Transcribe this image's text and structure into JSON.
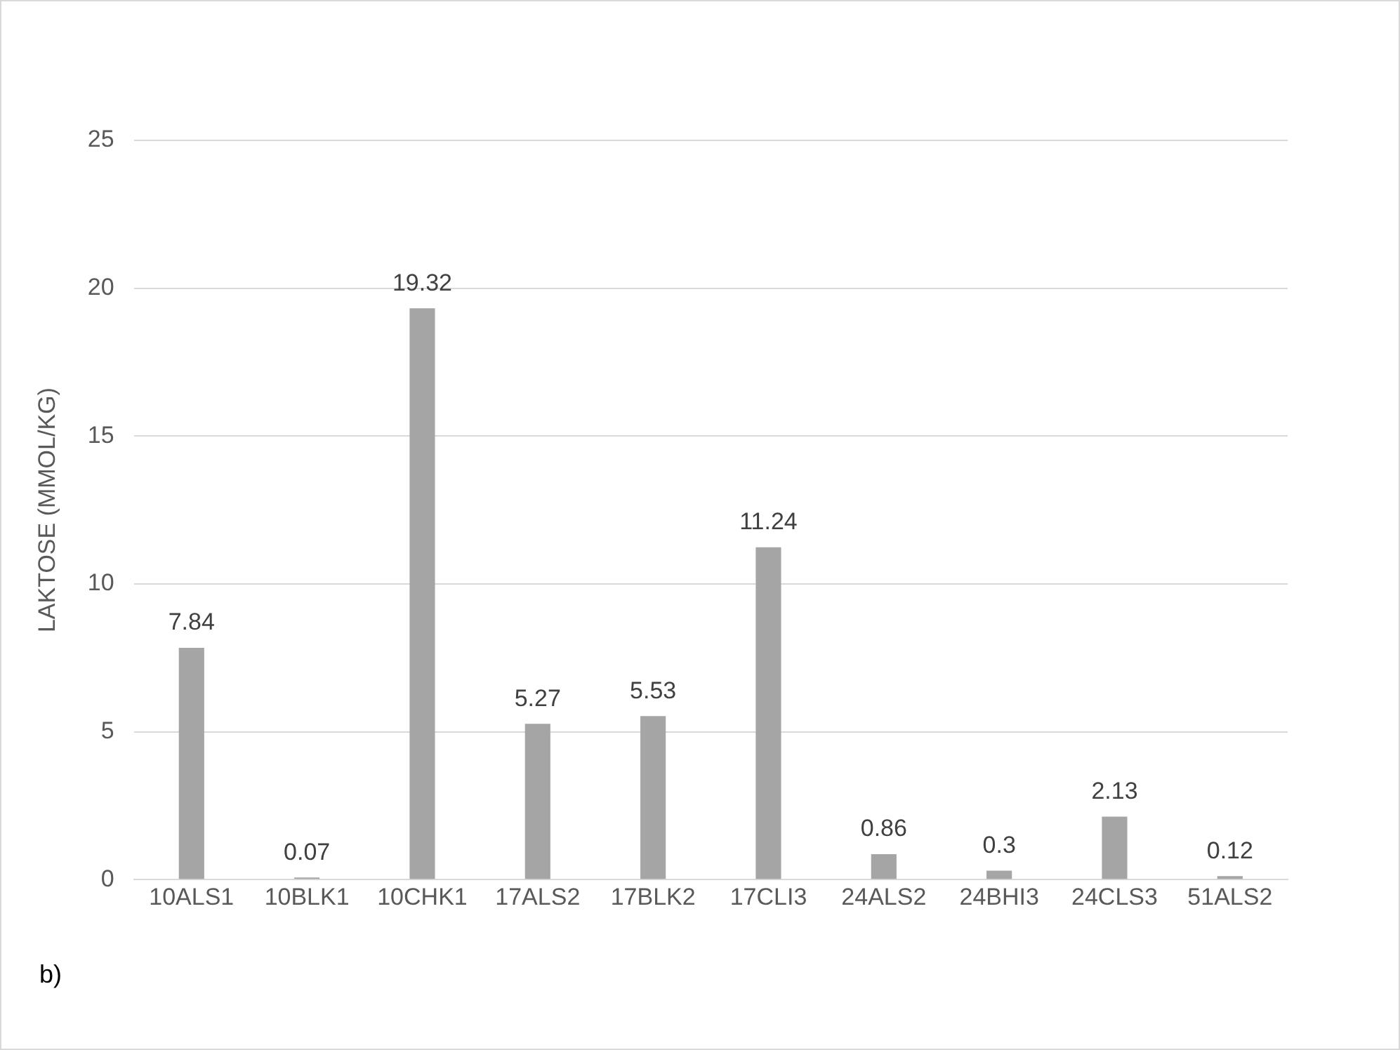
{
  "chart_data": {
    "type": "bar",
    "ylabel": "LAKTOSE (MMOL/KG)",
    "categories": [
      "10ALS1",
      "10BLK1",
      "10CHK1",
      "17ALS2",
      "17BLK2",
      "17CLI3",
      "24ALS2",
      "24BHI3",
      "24CLS3",
      "51ALS2"
    ],
    "values": [
      7.84,
      0.07,
      19.32,
      5.27,
      5.53,
      11.24,
      0.86,
      0.3,
      2.13,
      0.12
    ],
    "color": "#a5a5a5",
    "ylim": [
      0,
      25
    ],
    "yticks": [
      0,
      5,
      10,
      15,
      20,
      25
    ],
    "grid": "y",
    "data_labels": true,
    "annotations": [
      "b)"
    ]
  }
}
